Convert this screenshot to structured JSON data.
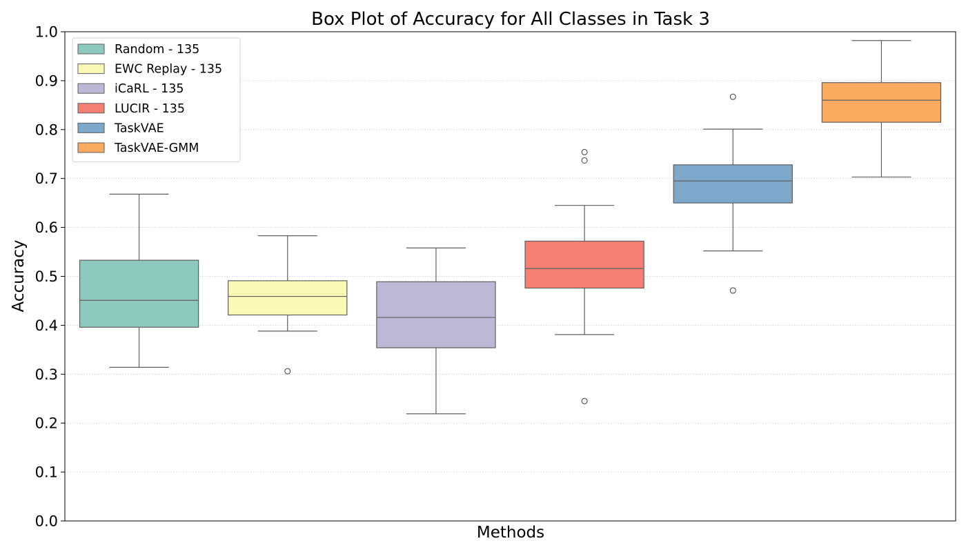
{
  "chart_data": {
    "type": "box",
    "title": "Box Plot of Accuracy for All Classes in Task 3",
    "xlabel": "Methods",
    "ylabel": "Accuracy",
    "ylim": [
      0.0,
      1.0
    ],
    "yticks": [
      "0.0",
      "0.1",
      "0.2",
      "0.3",
      "0.4",
      "0.5",
      "0.6",
      "0.7",
      "0.8",
      "0.9",
      "1.0"
    ],
    "grid": "horizontal dotted",
    "legend_position": "top-left",
    "series": [
      {
        "name": "Random - 135",
        "color": "#8dc9bc",
        "q1": 0.396,
        "median": 0.451,
        "q3": 0.533,
        "whisker_low": 0.314,
        "whisker_high": 0.668,
        "outliers": []
      },
      {
        "name": "EWC Replay - 135",
        "color": "#fafab6",
        "q1": 0.421,
        "median": 0.459,
        "q3": 0.491,
        "whisker_low": 0.388,
        "whisker_high": 0.583,
        "outliers": [
          0.306
        ]
      },
      {
        "name": "iCaRL - 135",
        "color": "#bdb8d6",
        "q1": 0.354,
        "median": 0.416,
        "q3": 0.489,
        "whisker_low": 0.219,
        "whisker_high": 0.558,
        "outliers": []
      },
      {
        "name": "LUCIR - 135",
        "color": "#f47f72",
        "q1": 0.476,
        "median": 0.516,
        "q3": 0.572,
        "whisker_low": 0.381,
        "whisker_high": 0.645,
        "outliers": [
          0.754,
          0.737,
          0.245
        ]
      },
      {
        "name": "TaskVAE",
        "color": "#7ea8ca",
        "q1": 0.65,
        "median": 0.695,
        "q3": 0.728,
        "whisker_low": 0.552,
        "whisker_high": 0.801,
        "outliers": [
          0.867,
          0.471
        ]
      },
      {
        "name": "TaskVAE-GMM",
        "color": "#f9ab62",
        "q1": 0.815,
        "median": 0.86,
        "q3": 0.896,
        "whisker_low": 0.703,
        "whisker_high": 0.982,
        "outliers": []
      }
    ]
  }
}
